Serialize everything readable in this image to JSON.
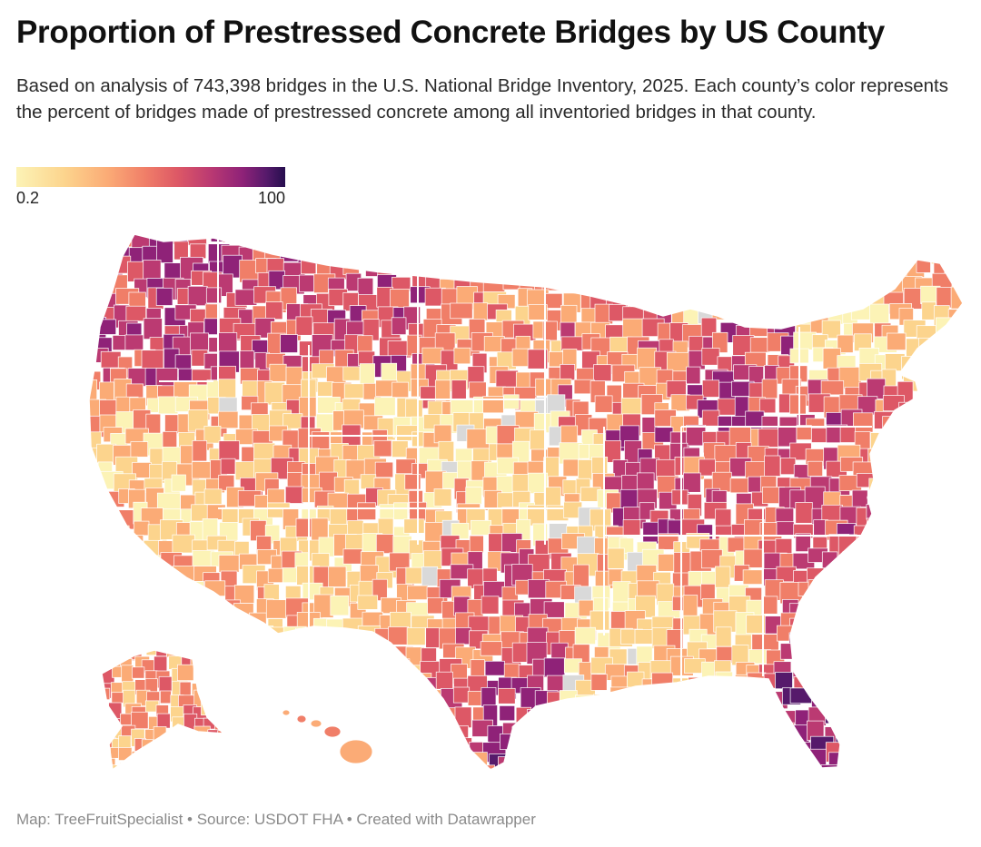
{
  "header": {
    "title": "Proportion of Prestressed Concrete Bridges by US County",
    "subtitle": "Based on analysis of 743,398 bridges in the U.S. National Bridge Inventory, 2025. Each county’s color represents the percent of bridges made of prestressed concrete among all inventoried bridges in that county."
  },
  "legend": {
    "min_label": "0.2",
    "max_label": "100",
    "min_value": 0.2,
    "max_value": 100,
    "colors": [
      "#fcf3b6",
      "#fcd48d",
      "#fbab76",
      "#f07e68",
      "#dd5866",
      "#bb3a72",
      "#8f2278",
      "#561a6b",
      "#260e4e"
    ],
    "no_data_color": "#d9d9d9"
  },
  "map": {
    "type": "choropleth",
    "geography": "US counties (contiguous US, Alaska, Hawaii)",
    "regions": [
      {
        "name": "pacific-northwest",
        "level": 0.62
      },
      {
        "name": "northern-rockies",
        "level": 0.58
      },
      {
        "name": "great-basin",
        "level": 0.3
      },
      {
        "name": "california",
        "level": 0.18
      },
      {
        "name": "southwest",
        "level": 0.2
      },
      {
        "name": "wyoming-area",
        "level": 0.1
      },
      {
        "name": "colorado-area",
        "level": 0.28
      },
      {
        "name": "northern-plains",
        "level": 0.33
      },
      {
        "name": "central-plains",
        "level": 0.12
      },
      {
        "name": "texas-panhandle",
        "level": 0.38
      },
      {
        "name": "texas",
        "level": 0.45
      },
      {
        "name": "gulf-coast-texas",
        "level": 0.62
      },
      {
        "name": "upper-midwest",
        "level": 0.38
      },
      {
        "name": "lower-michigan",
        "level": 0.55
      },
      {
        "name": "illinois-indiana",
        "level": 0.55
      },
      {
        "name": "ohio-kentucky",
        "level": 0.48
      },
      {
        "name": "mississippi-valley",
        "level": 0.15
      },
      {
        "name": "deep-south",
        "level": 0.2
      },
      {
        "name": "carolinas",
        "level": 0.5
      },
      {
        "name": "pennsylvania",
        "level": 0.5
      },
      {
        "name": "new-england",
        "level": 0.15
      },
      {
        "name": "florida",
        "level": 0.7
      },
      {
        "name": "alaska",
        "level": 0.3
      },
      {
        "name": "hawaii",
        "level": 0.25
      }
    ]
  },
  "footer": {
    "credit": "Map: TreeFruitSpecialist • Source: USDOT FHA • Created with Datawrapper"
  }
}
